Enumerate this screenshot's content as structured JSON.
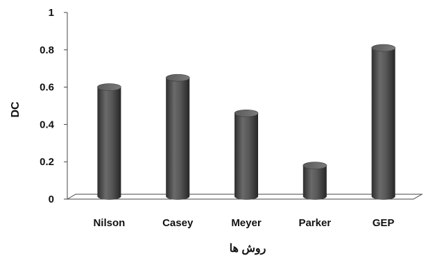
{
  "chart_data": {
    "type": "bar",
    "title": "",
    "xlabel": "روش ها",
    "ylabel": "DC",
    "categories": [
      "Nilson",
      "Casey",
      "Meyer",
      "Parker",
      "GEP"
    ],
    "values": [
      0.6,
      0.65,
      0.46,
      0.18,
      0.81
    ],
    "ylim": [
      0,
      1
    ],
    "yticks": [
      "0",
      "0.2",
      "0.4",
      "0.6",
      "0.8",
      "1"
    ],
    "grid": false,
    "legend": "none",
    "bar_color": "#4d4d4d"
  }
}
